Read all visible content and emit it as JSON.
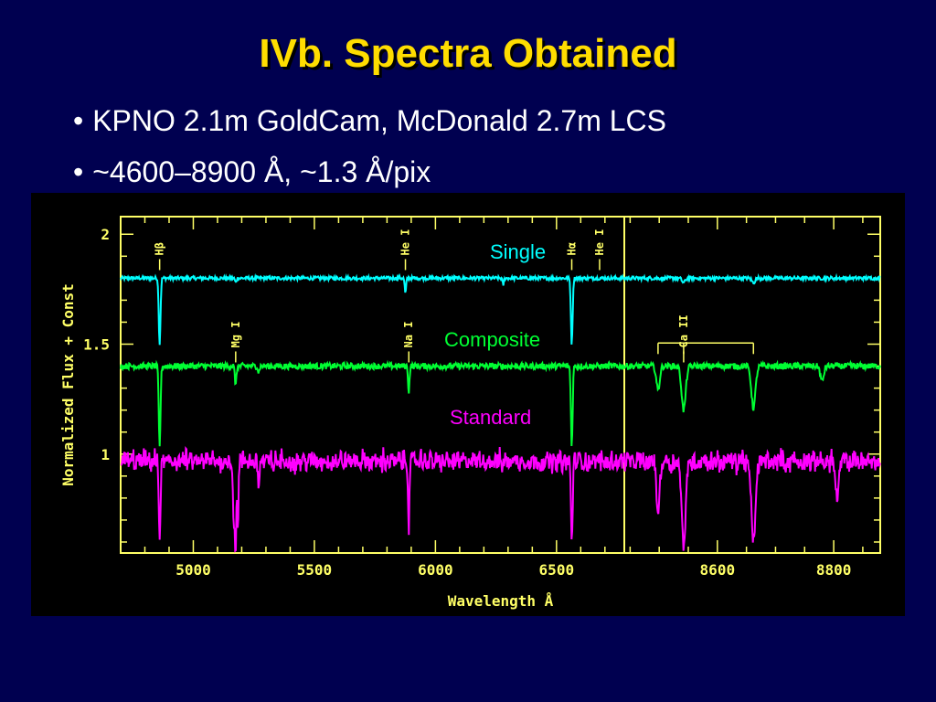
{
  "slide": {
    "title": "IVb. Spectra Obtained",
    "bullets": [
      "KPNO 2.1m GoldCam, McDonald 2.7m LCS",
      "~4600–8900 Å, ~1.3 Å/pix"
    ]
  },
  "colors": {
    "background": "#000050",
    "title": "#ffdd00",
    "axes": "#ffff66",
    "single": "#00ffff",
    "composite": "#00ff33",
    "standard": "#ff00ff"
  },
  "chart_data": {
    "type": "line",
    "xlabel": "Wavelength Å",
    "ylabel": "Normalized Flux + Const",
    "ylim": [
      0.55,
      2.08
    ],
    "panels": [
      {
        "xlim": [
          4700,
          6780
        ],
        "xticks": [
          5000,
          5500,
          6000,
          6500
        ]
      },
      {
        "xlim": [
          8440,
          8880
        ],
        "xticks": [
          8600,
          8800
        ]
      }
    ],
    "yticks": [
      1,
      1.5,
      2
    ],
    "yticklabels": [
      "1",
      "1.5",
      "2"
    ],
    "series": [
      {
        "name": "Single",
        "continuum": 1.8,
        "noise": 0.008,
        "lines": [
          [
            4861,
            0.3,
            5
          ],
          [
            5175,
            0.02,
            4
          ],
          [
            5876,
            0.07,
            4
          ],
          [
            6280,
            0.03,
            4
          ],
          [
            6563,
            0.3,
            5
          ],
          [
            8542,
            0.02,
            4
          ],
          [
            8662,
            0.02,
            4
          ]
        ]
      },
      {
        "name": "Composite",
        "continuum": 1.4,
        "noise": 0.014,
        "lines": [
          [
            4861,
            0.37,
            5
          ],
          [
            5175,
            0.08,
            5
          ],
          [
            5270,
            0.03,
            4
          ],
          [
            5890,
            0.12,
            4
          ],
          [
            6563,
            0.36,
            5
          ],
          [
            8498,
            0.11,
            4
          ],
          [
            8542,
            0.2,
            5
          ],
          [
            8662,
            0.19,
            5
          ],
          [
            8780,
            0.07,
            4
          ]
        ]
      },
      {
        "name": "Standard",
        "continuum": 0.98,
        "noise": 0.035,
        "lines": [
          [
            4861,
            0.35,
            5
          ],
          [
            5168,
            0.3,
            5
          ],
          [
            5175,
            0.35,
            4
          ],
          [
            5184,
            0.28,
            4
          ],
          [
            5270,
            0.12,
            4
          ],
          [
            5890,
            0.3,
            4
          ],
          [
            6563,
            0.35,
            5
          ],
          [
            8498,
            0.22,
            4
          ],
          [
            8542,
            0.37,
            5
          ],
          [
            8662,
            0.37,
            5
          ],
          [
            8806,
            0.17,
            4
          ]
        ]
      }
    ],
    "line_ids": [
      {
        "label": "Hβ",
        "x": 4861,
        "y": 1.97
      },
      {
        "label": "He I",
        "x": 5876,
        "y": 1.97
      },
      {
        "label": "Hα",
        "x": 6563,
        "y": 1.97
      },
      {
        "label": "He I",
        "x": 6678,
        "y": 1.97
      },
      {
        "label": "Mg I",
        "x": 5175,
        "y": 1.55
      },
      {
        "label": "Na I",
        "x": 5890,
        "y": 1.55
      },
      {
        "label": "Ca II",
        "x": 8542,
        "y": 1.55
      }
    ]
  }
}
